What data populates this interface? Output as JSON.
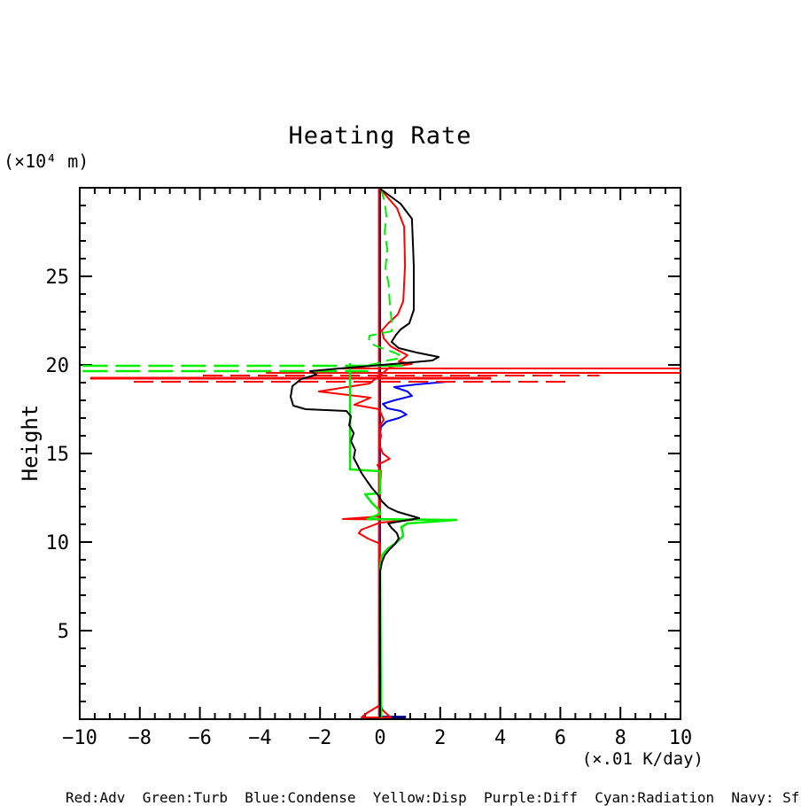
{
  "title": "Heating Rate",
  "axes": {
    "y_unit": "(×10⁴ m)",
    "y_label": "Height",
    "x_unit": "(×.01 K/day)"
  },
  "legend_text": "Red:Adv  Green:Turb  Blue:Condense  Yellow:Disp  Purple:Diff  Cyan:Radiation  Navy: SfcFlux",
  "colors": {
    "adv_red": "#ff0000",
    "turb_green": "#00ee00",
    "condense_blue": "#0000ff",
    "sfcflux_navy": "#000080",
    "unlabeled_black": "#000000",
    "frame": "#000000",
    "background": "#ffffff"
  },
  "chart_data": {
    "type": "line",
    "title": "Heating Rate",
    "xlabel": "(×.01 K/day)",
    "ylabel": "Height (×10⁴ m)",
    "xlim": [
      -10,
      10
    ],
    "ylim": [
      0,
      30
    ],
    "grid": false,
    "legend_position": "bottom-outside",
    "x_minor_step": 0.5,
    "x_major_step": 2,
    "y_minor_step": 1,
    "y_major_step": 5,
    "x_ticks": [
      {
        "v": -10,
        "label": "−10"
      },
      {
        "v": -8,
        "label": "−8"
      },
      {
        "v": -6,
        "label": "−6"
      },
      {
        "v": -4,
        "label": "−4"
      },
      {
        "v": -2,
        "label": "−2"
      },
      {
        "v": 0,
        "label": "0"
      },
      {
        "v": 2,
        "label": "2"
      },
      {
        "v": 4,
        "label": "4"
      },
      {
        "v": 6,
        "label": "6"
      },
      {
        "v": 8,
        "label": "8"
      },
      {
        "v": 10,
        "label": "10"
      }
    ],
    "y_ticks": [
      {
        "v": 5,
        "label": "5"
      },
      {
        "v": 10,
        "label": "10"
      },
      {
        "v": 15,
        "label": "15"
      },
      {
        "v": 20,
        "label": "20"
      },
      {
        "v": 25,
        "label": "25"
      }
    ],
    "series": [
      {
        "name": "sfcflux-navy-vertical",
        "color": "#000080",
        "width": 2,
        "dash": null,
        "points": [
          [
            0,
            29.95
          ],
          [
            0,
            0.05
          ]
        ]
      },
      {
        "name": "sfcflux-navy-bottom",
        "color": "#000080",
        "width": 3,
        "dash": null,
        "points": [
          [
            0.05,
            0.12
          ],
          [
            0.86,
            0.12
          ]
        ]
      },
      {
        "name": "condense-blue",
        "color": "#0000ff",
        "width": 2,
        "dash": null,
        "points": [
          [
            2.24,
            19.05
          ],
          [
            1.21,
            18.9
          ],
          [
            0.47,
            18.75
          ],
          [
            0.91,
            18.5
          ],
          [
            1.06,
            18.25
          ],
          [
            0.47,
            18.0
          ],
          [
            0.09,
            17.8
          ],
          [
            0.24,
            17.55
          ],
          [
            0.68,
            17.4
          ],
          [
            0.88,
            17.2
          ],
          [
            0.62,
            17.0
          ],
          [
            0.21,
            16.8
          ],
          [
            0.03,
            16.5
          ],
          [
            0.0,
            16.1
          ],
          [
            0.0,
            0.1
          ]
        ]
      },
      {
        "name": "adv-red-vertical",
        "color": "#ff0000",
        "width": 2,
        "dash": null,
        "points": [
          [
            -0.04,
            29.95
          ],
          [
            -0.04,
            0.05
          ]
        ]
      },
      {
        "name": "adv-red-spike-solid-1",
        "color": "#ff0000",
        "width": 2,
        "dash": null,
        "points": [
          [
            -1.35,
            19.8
          ],
          [
            10,
            19.8
          ]
        ]
      },
      {
        "name": "adv-red-spike-solid-2",
        "color": "#ff0000",
        "width": 2,
        "dash": null,
        "points": [
          [
            -3.8,
            19.55
          ],
          [
            10,
            19.55
          ]
        ]
      },
      {
        "name": "adv-red-spike-solid-3",
        "color": "#ff0000",
        "width": 3,
        "dash": null,
        "points": [
          [
            -9.65,
            19.25
          ],
          [
            3.7,
            19.25
          ]
        ]
      },
      {
        "name": "adv-red-spike-dashed-1",
        "color": "#ff0000",
        "width": 2,
        "dash": "22 9",
        "points": [
          [
            -5.9,
            19.4
          ],
          [
            7.3,
            19.4
          ]
        ]
      },
      {
        "name": "adv-red-spike-dashed-2",
        "color": "#ff0000",
        "width": 2,
        "dash": "22 9",
        "points": [
          [
            -8.2,
            19.05
          ],
          [
            6.2,
            19.05
          ]
        ]
      },
      {
        "name": "adv-red-curve",
        "color": "#ff0000",
        "width": 2,
        "dash": null,
        "points": [
          [
            0.0,
            29.95
          ],
          [
            0.56,
            28.85
          ],
          [
            0.8,
            27.8
          ],
          [
            0.83,
            25.6
          ],
          [
            0.77,
            23.6
          ],
          [
            0.59,
            22.85
          ],
          [
            0.27,
            22.35
          ],
          [
            0.06,
            21.95
          ],
          [
            0.12,
            21.5
          ],
          [
            0.35,
            21.05
          ],
          [
            0.68,
            20.75
          ],
          [
            0.91,
            20.55
          ],
          [
            0.77,
            20.35
          ],
          [
            0.62,
            20.2
          ],
          [
            1.06,
            20.05
          ],
          [
            0.35,
            19.9
          ],
          [
            -0.35,
            18.95
          ],
          [
            -2.04,
            18.5
          ],
          [
            -0.32,
            18.15
          ],
          [
            -0.86,
            17.75
          ],
          [
            -0.03,
            17.5
          ],
          [
            0.12,
            16.9
          ],
          [
            -0.03,
            16.5
          ],
          [
            0.03,
            16.0
          ],
          [
            -0.03,
            15.5
          ],
          [
            0.09,
            15.0
          ],
          [
            0.32,
            14.7
          ],
          [
            -0.09,
            14.35
          ],
          [
            0.03,
            14.0
          ],
          [
            0.0,
            13.0
          ],
          [
            0.0,
            11.45
          ],
          [
            -1.24,
            11.3
          ],
          [
            1.09,
            11.25
          ],
          [
            0.0,
            11.1
          ],
          [
            -0.62,
            10.7
          ],
          [
            -0.71,
            10.5
          ],
          [
            -0.41,
            10.2
          ],
          [
            0.0,
            9.9
          ],
          [
            0.0,
            0.8
          ],
          [
            -0.44,
            0.35
          ],
          [
            -0.62,
            0.1
          ],
          [
            0.35,
            0.1
          ],
          [
            0.09,
            0.5
          ],
          [
            0.0,
            0.8
          ]
        ]
      },
      {
        "name": "turb-green-dash-curve-upper",
        "color": "#00ee00",
        "width": 2,
        "dash": "13 7",
        "points": [
          [
            0.03,
            29.95
          ],
          [
            0.15,
            29.2
          ],
          [
            0.21,
            28.4
          ],
          [
            0.15,
            27.5
          ],
          [
            0.24,
            26.5
          ],
          [
            0.18,
            25.5
          ],
          [
            0.29,
            24.5
          ],
          [
            0.32,
            23.5
          ],
          [
            0.38,
            22.5
          ],
          [
            0.38,
            21.9
          ],
          [
            -0.35,
            21.65
          ],
          [
            -0.38,
            21.35
          ],
          [
            -0.18,
            21.1
          ],
          [
            0.12,
            20.9
          ],
          [
            0.47,
            20.7
          ],
          [
            0.71,
            20.5
          ],
          [
            0.56,
            20.35
          ],
          [
            0.24,
            20.25
          ],
          [
            -0.03,
            20.1
          ],
          [
            -0.5,
            19.95
          ]
        ]
      },
      {
        "name": "turb-green-spike-dashed-1",
        "color": "#00ee00",
        "width": 2.5,
        "dash": "28 9",
        "points": [
          [
            -9.9,
            19.95
          ],
          [
            0.9,
            19.95
          ]
        ]
      },
      {
        "name": "turb-green-spike-dashed-2",
        "color": "#00ee00",
        "width": 2.5,
        "dash": "28 9",
        "points": [
          [
            -9.9,
            19.65
          ],
          [
            -0.4,
            19.65
          ]
        ]
      },
      {
        "name": "turb-green-solid",
        "color": "#00ee00",
        "width": 2.5,
        "dash": null,
        "points": [
          [
            -1.0,
            20.1
          ],
          [
            -1.0,
            14.1
          ],
          [
            0.0,
            14.0
          ],
          [
            0.0,
            12.75
          ],
          [
            -0.5,
            12.7
          ],
          [
            -0.27,
            12.2
          ],
          [
            -0.06,
            11.85
          ],
          [
            0.0,
            11.6
          ],
          [
            -0.41,
            11.3
          ],
          [
            2.54,
            11.25
          ],
          [
            0.91,
            11.05
          ],
          [
            0.71,
            10.85
          ],
          [
            0.77,
            10.35
          ],
          [
            0.56,
            10.0
          ],
          [
            0.27,
            9.65
          ],
          [
            0.06,
            9.25
          ],
          [
            0.0,
            8.6
          ],
          [
            0.03,
            0.1
          ]
        ]
      },
      {
        "name": "unlabeled-black-curve",
        "color": "#000000",
        "width": 2,
        "dash": null,
        "points": [
          [
            0.0,
            29.95
          ],
          [
            0.68,
            29.1
          ],
          [
            1.06,
            28.25
          ],
          [
            1.12,
            25.6
          ],
          [
            1.12,
            23.1
          ],
          [
            0.97,
            22.35
          ],
          [
            0.68,
            22.0
          ],
          [
            0.53,
            21.7
          ],
          [
            0.38,
            21.3
          ],
          [
            0.62,
            20.95
          ],
          [
            1.21,
            20.7
          ],
          [
            1.95,
            20.45
          ],
          [
            1.74,
            20.25
          ],
          [
            0.77,
            20.1
          ],
          [
            -0.27,
            19.95
          ],
          [
            -1.36,
            19.8
          ],
          [
            -2.33,
            19.65
          ],
          [
            -2.12,
            19.45
          ],
          [
            -2.63,
            19.2
          ],
          [
            -2.92,
            18.8
          ],
          [
            -2.98,
            18.2
          ],
          [
            -2.89,
            17.7
          ],
          [
            -2.48,
            17.5
          ],
          [
            -1.12,
            17.4
          ],
          [
            -0.97,
            17.1
          ],
          [
            -1.03,
            16.6
          ],
          [
            -0.88,
            16.15
          ],
          [
            -0.97,
            15.7
          ],
          [
            -0.83,
            15.2
          ],
          [
            -0.88,
            14.75
          ],
          [
            -0.74,
            14.3
          ],
          [
            -0.62,
            13.9
          ],
          [
            -0.44,
            13.45
          ],
          [
            -0.27,
            13.05
          ],
          [
            -0.09,
            12.7
          ],
          [
            0.06,
            12.3
          ],
          [
            0.27,
            11.95
          ],
          [
            0.59,
            11.7
          ],
          [
            1.0,
            11.5
          ],
          [
            1.3,
            11.35
          ],
          [
            0.77,
            11.2
          ],
          [
            0.27,
            11.05
          ],
          [
            0.38,
            10.8
          ],
          [
            0.56,
            10.5
          ],
          [
            0.62,
            10.2
          ],
          [
            0.5,
            9.9
          ],
          [
            0.32,
            9.6
          ],
          [
            0.15,
            9.25
          ],
          [
            0.06,
            8.85
          ],
          [
            0.0,
            8.35
          ],
          [
            0.0,
            0.1
          ]
        ]
      }
    ]
  }
}
